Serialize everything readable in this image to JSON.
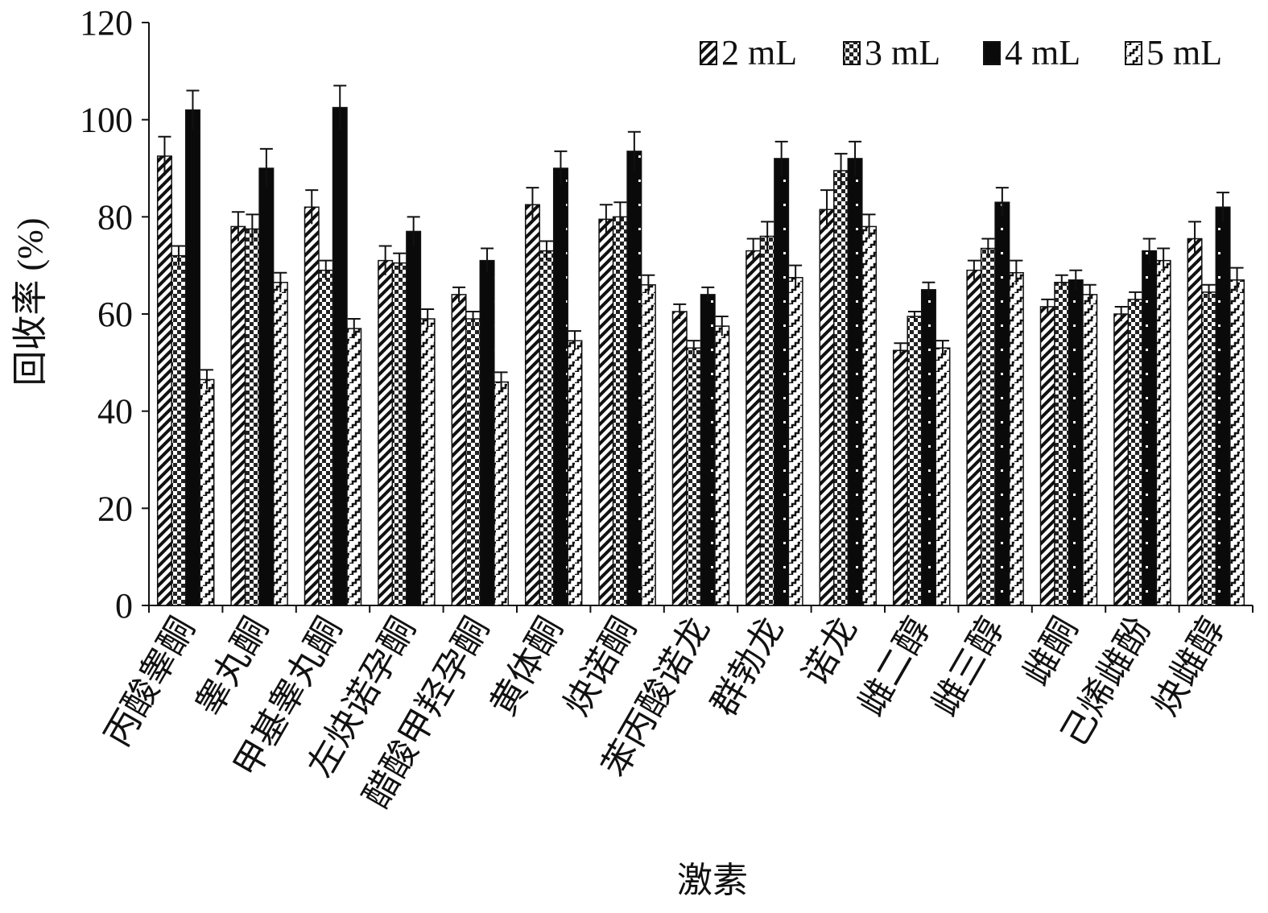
{
  "chart_data": {
    "type": "bar",
    "title": "",
    "xlabel": "激素",
    "ylabel": "回收率 (%)",
    "ylim": [
      0,
      120
    ],
    "yticks": [
      0,
      20,
      40,
      60,
      80,
      100,
      120
    ],
    "grid": false,
    "legend_position": "top-right",
    "error_bars": true,
    "categories": [
      "丙酸睾酮",
      "睾丸酮",
      "甲基睾丸酮",
      "左炔诺孕酮",
      "醋酸甲羟孕酮",
      "黄体酮",
      "炔诺酮",
      "苯丙酸诺龙",
      "群勃龙",
      "诺龙",
      "雌二醇",
      "雌三醇",
      "雌酮",
      "己烯雌酚",
      "炔雌醇"
    ],
    "series": [
      {
        "name": "2 mL",
        "pattern": "diag",
        "color": "#111111",
        "values": [
          92.5,
          78,
          82,
          71,
          64,
          82.5,
          79.5,
          60.5,
          73,
          81.5,
          52.5,
          69,
          61.5,
          60,
          75.5
        ],
        "errors": [
          4,
          3,
          3.5,
          3,
          1.5,
          3.5,
          3,
          1.5,
          2.5,
          4,
          1.5,
          2,
          1.5,
          1.5,
          3.5
        ]
      },
      {
        "name": "3 mL",
        "pattern": "check",
        "color": "#111111",
        "values": [
          72,
          77.5,
          69,
          70.5,
          59,
          73,
          80,
          53,
          76,
          89.5,
          59.5,
          73.5,
          66.5,
          63,
          64.5
        ],
        "errors": [
          2,
          3,
          2,
          2,
          1.5,
          2,
          3,
          1.5,
          3,
          3.5,
          1,
          2,
          1.5,
          1.5,
          1.5
        ]
      },
      {
        "name": "4 mL",
        "pattern": "solid-dots",
        "color": "#111111",
        "values": [
          102,
          90,
          102.5,
          77,
          71,
          90,
          93.5,
          64,
          92,
          92,
          65,
          83,
          67,
          73,
          82
        ],
        "errors": [
          4,
          4,
          4.5,
          3,
          2.5,
          3.5,
          4,
          1.5,
          3.5,
          3.5,
          1.5,
          3,
          2,
          2.5,
          3
        ]
      },
      {
        "name": "5 mL",
        "pattern": "stair",
        "color": "#111111",
        "values": [
          46.5,
          66.5,
          57,
          59,
          46,
          54.5,
          66,
          57.5,
          67.5,
          78,
          53,
          68.5,
          64,
          71,
          67
        ],
        "errors": [
          2,
          2,
          2,
          2,
          2,
          2,
          2,
          2,
          2.5,
          2.5,
          1.5,
          2.5,
          2,
          2.5,
          2.5
        ]
      }
    ]
  }
}
